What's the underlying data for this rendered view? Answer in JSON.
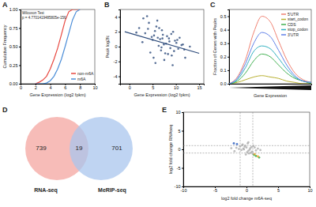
{
  "chart_data": [
    {
      "type": "line",
      "title": "A",
      "x_label": "Gene Expression (log2 fpkm)",
      "y_label": "Cumulative Frequency",
      "annotations": [
        "Wilcoxon Test",
        "p = 4.7701419485805e-156"
      ],
      "x": [
        2,
        2.5,
        3,
        3.5,
        4,
        4.5,
        5,
        5.5,
        6,
        6.5,
        7,
        7.5,
        8
      ],
      "series": [
        {
          "name": "non-m6A",
          "color": "#e8473f",
          "values": [
            0,
            0.02,
            0.05,
            0.1,
            0.2,
            0.33,
            0.48,
            0.66,
            0.85,
            0.97,
            1,
            1,
            1
          ]
        },
        {
          "name": "m6A",
          "color": "#4c8ed8",
          "values": [
            0,
            0,
            0,
            0.01,
            0.04,
            0.1,
            0.2,
            0.33,
            0.5,
            0.68,
            0.86,
            0.97,
            1
          ]
        }
      ],
      "xlim": [
        0,
        10
      ],
      "xticks": [
        0,
        2,
        4,
        6,
        8,
        10
      ],
      "ylim": [
        0,
        1
      ],
      "yticks": [
        {
          "value": 0,
          "label": "0.00"
        },
        0.25,
        {
          "value": 0.5,
          "label": "0.50"
        },
        0.75,
        {
          "value": 1,
          "label": "1.00"
        }
      ],
      "legend": "bottom-right"
    },
    {
      "type": "scatter",
      "title": "B",
      "x_label": "Gene Expression (log2 fpkm)",
      "y_label": "Peak log2fc",
      "series": [
        {
          "color": "#2c4a7a",
          "x": [
            2.1,
            3.4,
            4.2,
            5.0,
            5.5,
            6.1,
            6.8,
            7.2,
            7.9,
            8.5,
            9.1,
            9.8,
            10.5,
            11.2,
            12.0,
            3.0,
            4.5,
            5.8,
            6.3,
            7.0,
            7.5,
            8.1,
            8.8,
            9.4,
            10.1,
            2.8,
            4.0,
            5.2,
            6.0,
            6.6,
            7.4,
            8.3,
            9.0,
            9.6,
            10.8,
            11.8,
            13.0,
            1.5,
            3.8,
            4.8,
            5.6,
            6.4,
            7.1,
            7.7,
            8.6,
            9.3,
            10.3,
            11.5,
            5.3,
            6.9
          ],
          "values": [
            2.5,
            1.8,
            3.2,
            0.9,
            2.1,
            1.2,
            -0.5,
            1.6,
            0.4,
            1.1,
            -1.2,
            0.8,
            -0.3,
            0.2,
            -1.5,
            3.8,
            -0.8,
            2.7,
            0.1,
            2.2,
            -1.8,
            1.4,
            -0.2,
            2.0,
            0.5,
            0.6,
            2.4,
            -1.5,
            3.5,
            1.0,
            0.3,
            -1.0,
            1.7,
            -0.6,
            1.2,
            -0.4,
            0.0,
            1.9,
            4.1,
            1.3,
            -2.2,
            2.5,
            1.1,
            -0.9,
            0.7,
            -2.5,
            0.9,
            0.3,
            1.5,
            -0.1
          ]
        },
        {
          "type": "line",
          "color": "#2c4a7a",
          "x": [
            -1,
            15
          ],
          "values": [
            2.0,
            -0.9
          ]
        }
      ],
      "xlim": [
        -2,
        16
      ],
      "xticks": [
        0,
        5,
        10,
        15
      ],
      "ylim": [
        -5,
        5
      ],
      "yticks": [
        -4,
        -2,
        0,
        2,
        4
      ]
    },
    {
      "type": "line",
      "title": "C",
      "x_label": "Gene Expression",
      "y_label": "Fraction of Genes with Peaks",
      "x": [
        0,
        1,
        2,
        3,
        4,
        5,
        6,
        7,
        8,
        9,
        10
      ],
      "series": [
        {
          "name": "5'UTR",
          "color": "#f08070",
          "values": [
            0,
            0.05,
            0.18,
            0.38,
            0.5,
            0.46,
            0.32,
            0.18,
            0.08,
            0.03,
            0.01
          ]
        },
        {
          "name": "start_codon",
          "color": "#b8b030",
          "values": [
            0,
            0.01,
            0.03,
            0.05,
            0.06,
            0.05,
            0.04,
            0.02,
            0.01,
            0,
            0
          ]
        },
        {
          "name": "CDS",
          "color": "#40b050",
          "values": [
            0,
            0.02,
            0.08,
            0.17,
            0.22,
            0.2,
            0.14,
            0.08,
            0.04,
            0.02,
            0
          ]
        },
        {
          "name": "stop_codon",
          "color": "#30b0c0",
          "values": [
            0,
            0.03,
            0.12,
            0.24,
            0.28,
            0.26,
            0.19,
            0.11,
            0.05,
            0.02,
            0.01
          ]
        },
        {
          "name": "3'UTR",
          "color": "#6080e8",
          "values": [
            0,
            0.04,
            0.15,
            0.3,
            0.38,
            0.35,
            0.25,
            0.14,
            0.06,
            0.02,
            0.01
          ]
        }
      ],
      "xlim": [
        0,
        10
      ],
      "ylim": [
        0,
        0.55
      ],
      "yticks": [
        {
          "value": 0,
          "label": "0.0"
        },
        0.1,
        0.2,
        0.3,
        0.4,
        0.5
      ],
      "tick_labels": "y",
      "legend": "top-right"
    },
    {
      "type": "venn",
      "title": "D",
      "sets": [
        {
          "name": "RNA-seq",
          "color": "#f4a6a0",
          "value": 739
        },
        {
          "name": "MeRIP-seq",
          "color": "#a9c6ee",
          "value": 701
        }
      ],
      "overlap": 19
    },
    {
      "type": "scatter",
      "title": "E",
      "x_label": "log2 fold change m6A-seq",
      "y_label": "log2 fold change RNAseq",
      "series": [
        {
          "color": "#b0b0b0",
          "x": [
            -0.5,
            0.3,
            0.8,
            -1.2,
            1.5,
            -0.2,
            0.1,
            0.6,
            -0.8,
            1.1,
            -1.6,
            0.4,
            -0.3,
            0.9,
            -0.6,
            1.8,
            -1.9,
            0.2,
            -0.1,
            0.5,
            1.3,
            -1.0,
            0.7,
            -0.4,
            2.2,
            -2.4,
            0.0,
            1.0,
            -0.7,
            0.3
          ],
          "values": [
            0.2,
            -0.4,
            0.6,
            0.1,
            -0.3,
            1.0,
            -0.8,
            0.3,
            -0.2,
            0.9,
            0.4,
            -1.1,
            0.7,
            -0.6,
            1.3,
            0.2,
            -0.5,
            1.6,
            -1.4,
            -0.1,
            0.5,
            0.8,
            -0.9,
            0.0,
            -0.2,
            0.3,
            0.5,
            -1.2,
            1.1,
            1.9
          ]
        },
        {
          "color": "#3cb043",
          "x": [
            1.5,
            2.0,
            1.2
          ],
          "values": [
            -1.8,
            -2.2,
            -1.5
          ]
        },
        {
          "color": "#f0a030",
          "x": [
            1.3,
            1.8
          ],
          "values": [
            -1.3,
            -1.9
          ]
        },
        {
          "color": "#3060c0",
          "x": [
            -1.5,
            -2.0
          ],
          "values": [
            1.4,
            1.6
          ]
        }
      ],
      "reference_lines": {
        "x": [
          -1,
          1
        ],
        "y": [
          -1,
          1
        ]
      },
      "xlim": [
        -10,
        10
      ],
      "xticks": [
        -10,
        -5,
        0,
        5,
        10
      ],
      "ylim": [
        -10,
        10
      ],
      "yticks": [
        -10,
        -5,
        0,
        5,
        10
      ]
    }
  ]
}
